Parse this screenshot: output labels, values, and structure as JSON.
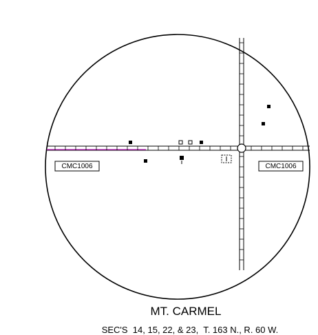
{
  "labels": [
    "CMC1006",
    "CMC1006"
  ],
  "title": "MT. CARMEL",
  "subtitle": "SEC'S  14, 15, 22, & 23,  T. 163 N., R. 60 W."
}
